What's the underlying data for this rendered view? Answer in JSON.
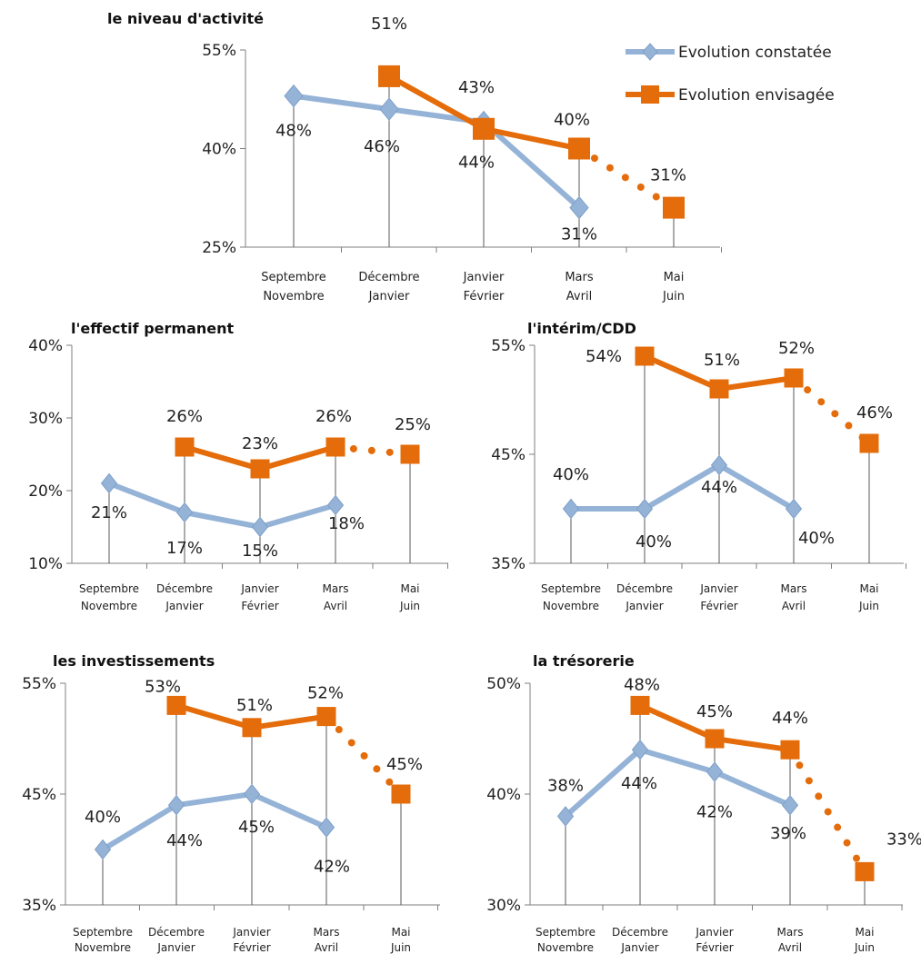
{
  "colors": {
    "constatee": "#95B3D7",
    "envisagee": "#E46C0A",
    "axis": "#7F7F7F",
    "drop": "#595959"
  },
  "legend": {
    "items": [
      {
        "name": "Evolution constatée",
        "marker": "diamond",
        "color": "#95B3D7"
      },
      {
        "name": "Evolution envisagée",
        "marker": "square",
        "color": "#E46C0A"
      }
    ]
  },
  "chart_data": [
    {
      "id": "activite",
      "type": "line",
      "title": "le niveau d'activité",
      "categories": [
        [
          "Septembre",
          "Novembre"
        ],
        [
          "Décembre",
          "Janvier"
        ],
        [
          "Janvier",
          "Février"
        ],
        [
          "Mars",
          "Avril"
        ],
        [
          "Mai",
          "Juin"
        ]
      ],
      "ylim": [
        25,
        55
      ],
      "yticks": [
        "25%",
        "40%",
        "55%"
      ],
      "series": [
        {
          "name": "Evolution constatée",
          "values": [
            48,
            46,
            44,
            31,
            null
          ],
          "labels": [
            "48%",
            "46%",
            "44%",
            "31%",
            ""
          ]
        },
        {
          "name": "Evolution envisagée",
          "values": [
            null,
            51,
            43,
            40,
            31
          ],
          "labels": [
            "",
            "51%",
            "43%",
            "40%",
            "31%"
          ],
          "dotted_last": true
        }
      ]
    },
    {
      "id": "effectif",
      "type": "line",
      "title": "l'effectif permanent",
      "categories": [
        [
          "Septembre",
          "Novembre"
        ],
        [
          "Décembre",
          "Janvier"
        ],
        [
          "Janvier",
          "Février"
        ],
        [
          "Mars",
          "Avril"
        ],
        [
          "Mai",
          "Juin"
        ]
      ],
      "ylim": [
        10,
        40
      ],
      "yticks": [
        "10%",
        "20%",
        "30%",
        "40%"
      ],
      "series": [
        {
          "name": "Evolution constatée",
          "values": [
            21,
            17,
            15,
            18,
            null
          ],
          "labels": [
            "21%",
            "17%",
            "15%",
            "18%",
            ""
          ]
        },
        {
          "name": "Evolution envisagée",
          "values": [
            null,
            26,
            23,
            26,
            25
          ],
          "labels": [
            "",
            "26%",
            "23%",
            "26%",
            "25%"
          ],
          "dotted_last": true
        }
      ]
    },
    {
      "id": "interim",
      "type": "line",
      "title": "l'intérim/CDD",
      "categories": [
        [
          "Septembre",
          "Novembre"
        ],
        [
          "Décembre",
          "Janvier"
        ],
        [
          "Janvier",
          "Février"
        ],
        [
          "Mars",
          "Avril"
        ],
        [
          "Mai",
          "Juin"
        ]
      ],
      "ylim": [
        35,
        55
      ],
      "yticks": [
        "35%",
        "45%",
        "55%"
      ],
      "series": [
        {
          "name": "Evolution constatée",
          "values": [
            40,
            40,
            44,
            40,
            null
          ],
          "labels": [
            "40%",
            "40%",
            "44%",
            "40%",
            ""
          ]
        },
        {
          "name": "Evolution envisagée",
          "values": [
            null,
            54,
            51,
            52,
            46
          ],
          "labels": [
            "",
            "54%",
            "51%",
            "52%",
            "46%"
          ],
          "dotted_last": true
        }
      ]
    },
    {
      "id": "investissements",
      "type": "line",
      "title": "les investissements",
      "categories": [
        [
          "Septembre",
          "Novembre"
        ],
        [
          "Décembre",
          "Janvier"
        ],
        [
          "Janvier",
          "Février"
        ],
        [
          "Mars",
          "Avril"
        ],
        [
          "Mai",
          "Juin"
        ]
      ],
      "ylim": [
        35,
        55
      ],
      "yticks": [
        "35%",
        "45%",
        "55%"
      ],
      "series": [
        {
          "name": "Evolution constatée",
          "values": [
            40,
            44,
            45,
            42,
            null
          ],
          "labels": [
            "40%",
            "44%",
            "45%",
            "42%",
            ""
          ]
        },
        {
          "name": "Evolution envisagée",
          "values": [
            null,
            53,
            51,
            52,
            45
          ],
          "labels": [
            "",
            "53%",
            "51%",
            "52%",
            "45%"
          ],
          "dotted_last": true
        }
      ]
    },
    {
      "id": "tresorerie",
      "type": "line",
      "title": "la trésorerie",
      "categories": [
        [
          "Septembre",
          "Novembre"
        ],
        [
          "Décembre",
          "Janvier"
        ],
        [
          "Janvier",
          "Février"
        ],
        [
          "Mars",
          "Avril"
        ],
        [
          "Mai",
          "Juin"
        ]
      ],
      "ylim": [
        30,
        50
      ],
      "yticks": [
        "30%",
        "40%",
        "50%"
      ],
      "series": [
        {
          "name": "Evolution constatée",
          "values": [
            38,
            44,
            42,
            39,
            null
          ],
          "labels": [
            "38%",
            "44%",
            "42%",
            "39%",
            ""
          ]
        },
        {
          "name": "Evolution envisagée",
          "values": [
            null,
            48,
            45,
            44,
            33
          ],
          "labels": [
            "",
            "48%",
            "45%",
            "44%",
            "33%"
          ],
          "dotted_last": true
        }
      ]
    }
  ]
}
